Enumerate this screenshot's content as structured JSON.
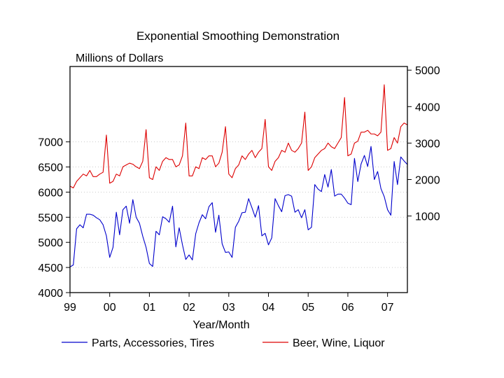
{
  "chart_data": {
    "type": "line",
    "title": "Exponential Smoothing Demonstration",
    "units_label": "Millions of Dollars",
    "xlabel": "Year/Month",
    "x_tick_labels": [
      "99",
      "00",
      "01",
      "02",
      "03",
      "04",
      "05",
      "06",
      "07"
    ],
    "x_start": "1999-01",
    "left_axis": {
      "ticks": [
        4000,
        4500,
        5000,
        5500,
        6000,
        6500,
        7000
      ],
      "range": [
        4000,
        8500
      ]
    },
    "right_axis": {
      "ticks": [
        1000,
        2000,
        3000,
        4000,
        5000
      ],
      "range": [
        -1100,
        5100
      ]
    },
    "grid": true,
    "legend_position": "bottom",
    "series": [
      {
        "name": "Parts, Accessories, Tires",
        "color": "#0000cc",
        "axis": "left",
        "values": [
          4510,
          4550,
          5270,
          5350,
          5290,
          5560,
          5560,
          5540,
          5490,
          5450,
          5350,
          5130,
          4700,
          4900,
          5600,
          5150,
          5650,
          5720,
          5380,
          5850,
          5500,
          5380,
          5120,
          4900,
          4580,
          4520,
          5220,
          5150,
          5510,
          5470,
          5400,
          5720,
          4910,
          5290,
          4950,
          4660,
          4750,
          4650,
          5170,
          5390,
          5550,
          5470,
          5710,
          5790,
          5200,
          5540,
          4970,
          4800,
          4810,
          4700,
          5300,
          5420,
          5590,
          5600,
          5870,
          5690,
          5500,
          5730,
          5130,
          5180,
          4950,
          5090,
          5870,
          5730,
          5610,
          5930,
          5950,
          5920,
          5600,
          5650,
          5490,
          5650,
          5250,
          5300,
          6150,
          6060,
          6010,
          6350,
          6100,
          6450,
          5920,
          5960,
          5960,
          5880,
          5780,
          5750,
          6670,
          6210,
          6560,
          6730,
          6510,
          6910,
          6250,
          6410,
          6070,
          5910,
          5650,
          5540,
          6610,
          6150,
          6700,
          6620,
          6550
        ]
      },
      {
        "name": "Beer, Wine, Liquor",
        "color": "#dd0000",
        "axis": "right",
        "values": [
          1820,
          1770,
          1950,
          2050,
          2150,
          2100,
          2250,
          2080,
          2080,
          2150,
          2200,
          3220,
          1900,
          1950,
          2150,
          2100,
          2350,
          2400,
          2450,
          2420,
          2350,
          2300,
          2500,
          3370,
          2050,
          2000,
          2350,
          2250,
          2500,
          2600,
          2550,
          2550,
          2350,
          2400,
          2650,
          3550,
          2100,
          2100,
          2350,
          2300,
          2600,
          2550,
          2650,
          2650,
          2350,
          2450,
          2750,
          3450,
          2150,
          2050,
          2300,
          2400,
          2650,
          2550,
          2700,
          2800,
          2600,
          2750,
          2850,
          3650,
          2350,
          2250,
          2500,
          2600,
          2800,
          2750,
          3000,
          2800,
          2750,
          2850,
          3000,
          3850,
          2250,
          2350,
          2600,
          2700,
          2800,
          2850,
          3000,
          2900,
          2850,
          3000,
          3150,
          4250,
          2650,
          2700,
          3000,
          3050,
          3300,
          3300,
          3350,
          3250,
          3250,
          3200,
          3300,
          4600,
          2800,
          2850,
          3150,
          3000,
          3450,
          3550,
          3500
        ]
      }
    ]
  }
}
